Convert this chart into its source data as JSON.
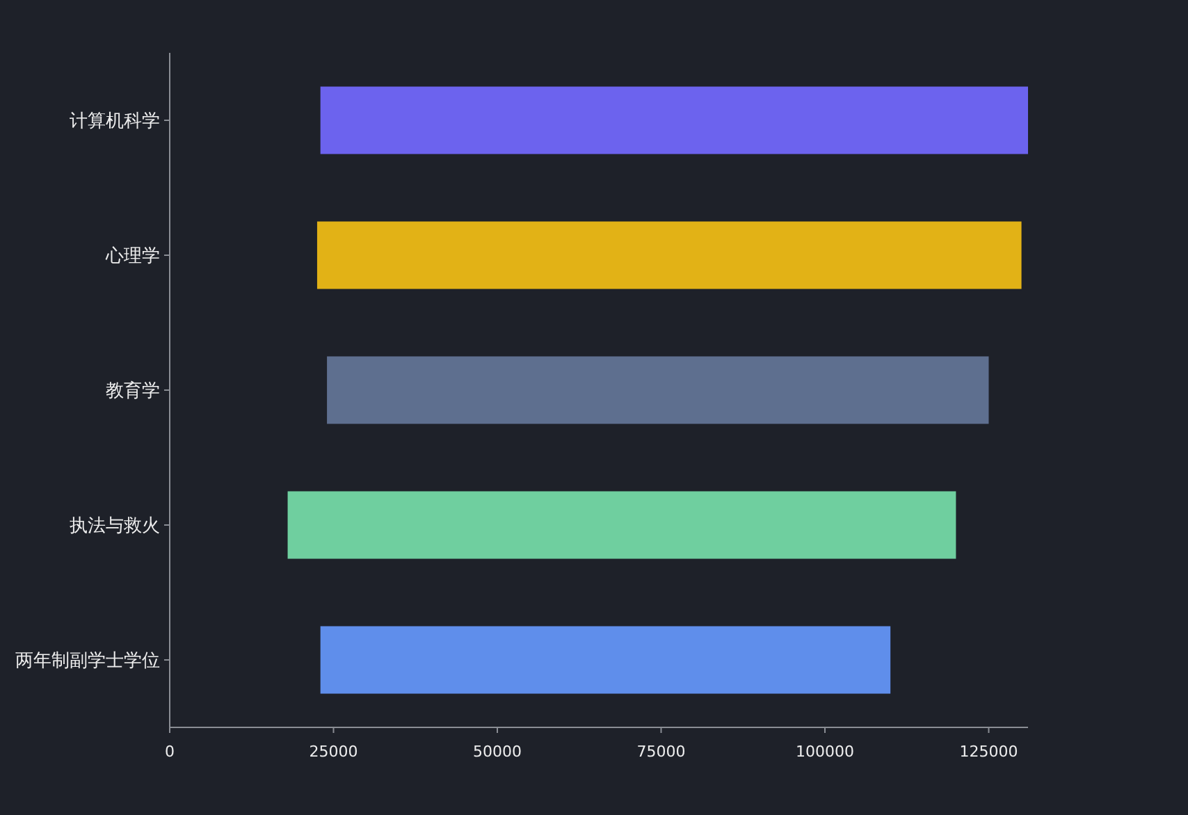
{
  "chart_data": {
    "type": "bar",
    "orientation": "horizontal",
    "categories": [
      "计算机科学",
      "心理学",
      "教育学",
      "执法与救火",
      "两年制副学士学位"
    ],
    "base": [
      23000,
      22500,
      24000,
      18000,
      23000
    ],
    "values": [
      108000,
      107500,
      101000,
      102000,
      87000
    ],
    "colors": [
      "#6c63ee",
      "#e2b216",
      "#5e6f8f",
      "#6fcf9f",
      "#5f8eeb"
    ],
    "xlim": [
      0,
      131000
    ],
    "xticks": [
      0,
      25000,
      50000,
      75000,
      100000,
      125000
    ]
  }
}
